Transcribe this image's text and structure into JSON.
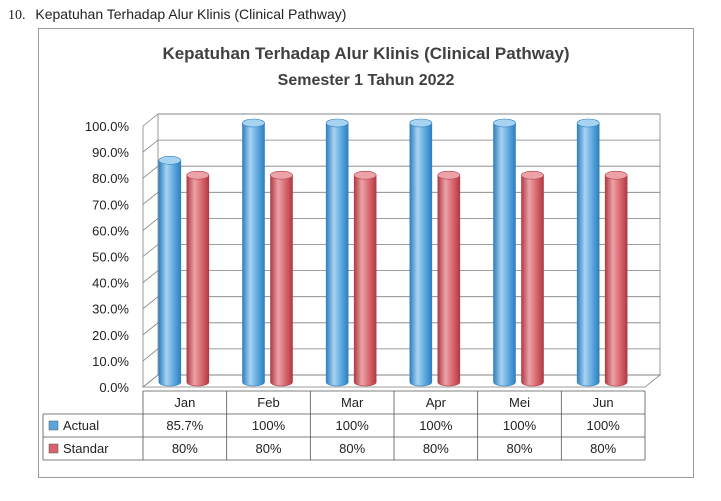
{
  "heading": {
    "number": "10.",
    "text": "Kepatuhan Terhadap Alur Klinis (Clinical Pathway)"
  },
  "colors": {
    "actual": "#5ba7dd",
    "actual_dark": "#2f7fbf",
    "actual_light": "#a7d3f2",
    "standar": "#d7646c",
    "standar_dark": "#b03a44",
    "standar_light": "#eba3a8",
    "grid": "#7f7f7f"
  },
  "chart_data": {
    "type": "bar",
    "title": "Kepatuhan Terhadap Alur Klinis (Clinical Pathway)",
    "subtitle": "Semester 1 Tahun 2022",
    "categories": [
      "Jan",
      "Feb",
      "Mar",
      "Apr",
      "Mei",
      "Jun"
    ],
    "series": [
      {
        "name": "Actual",
        "values": [
          85.7,
          100,
          100,
          100,
          100,
          100
        ],
        "labels": [
          "85.7%",
          "100%",
          "100%",
          "100%",
          "100%",
          "100%"
        ]
      },
      {
        "name": "Standar",
        "values": [
          80,
          80,
          80,
          80,
          80,
          80
        ],
        "labels": [
          "80%",
          "80%",
          "80%",
          "80%",
          "80%",
          "80%"
        ]
      }
    ],
    "ylim": [
      0,
      100
    ],
    "yticks": [
      "0.0%",
      "10.0%",
      "20.0%",
      "30.0%",
      "40.0%",
      "50.0%",
      "60.0%",
      "70.0%",
      "80.0%",
      "90.0%",
      "100.0%"
    ],
    "grid": true,
    "style": "3d-cylinder",
    "data_table": true
  }
}
